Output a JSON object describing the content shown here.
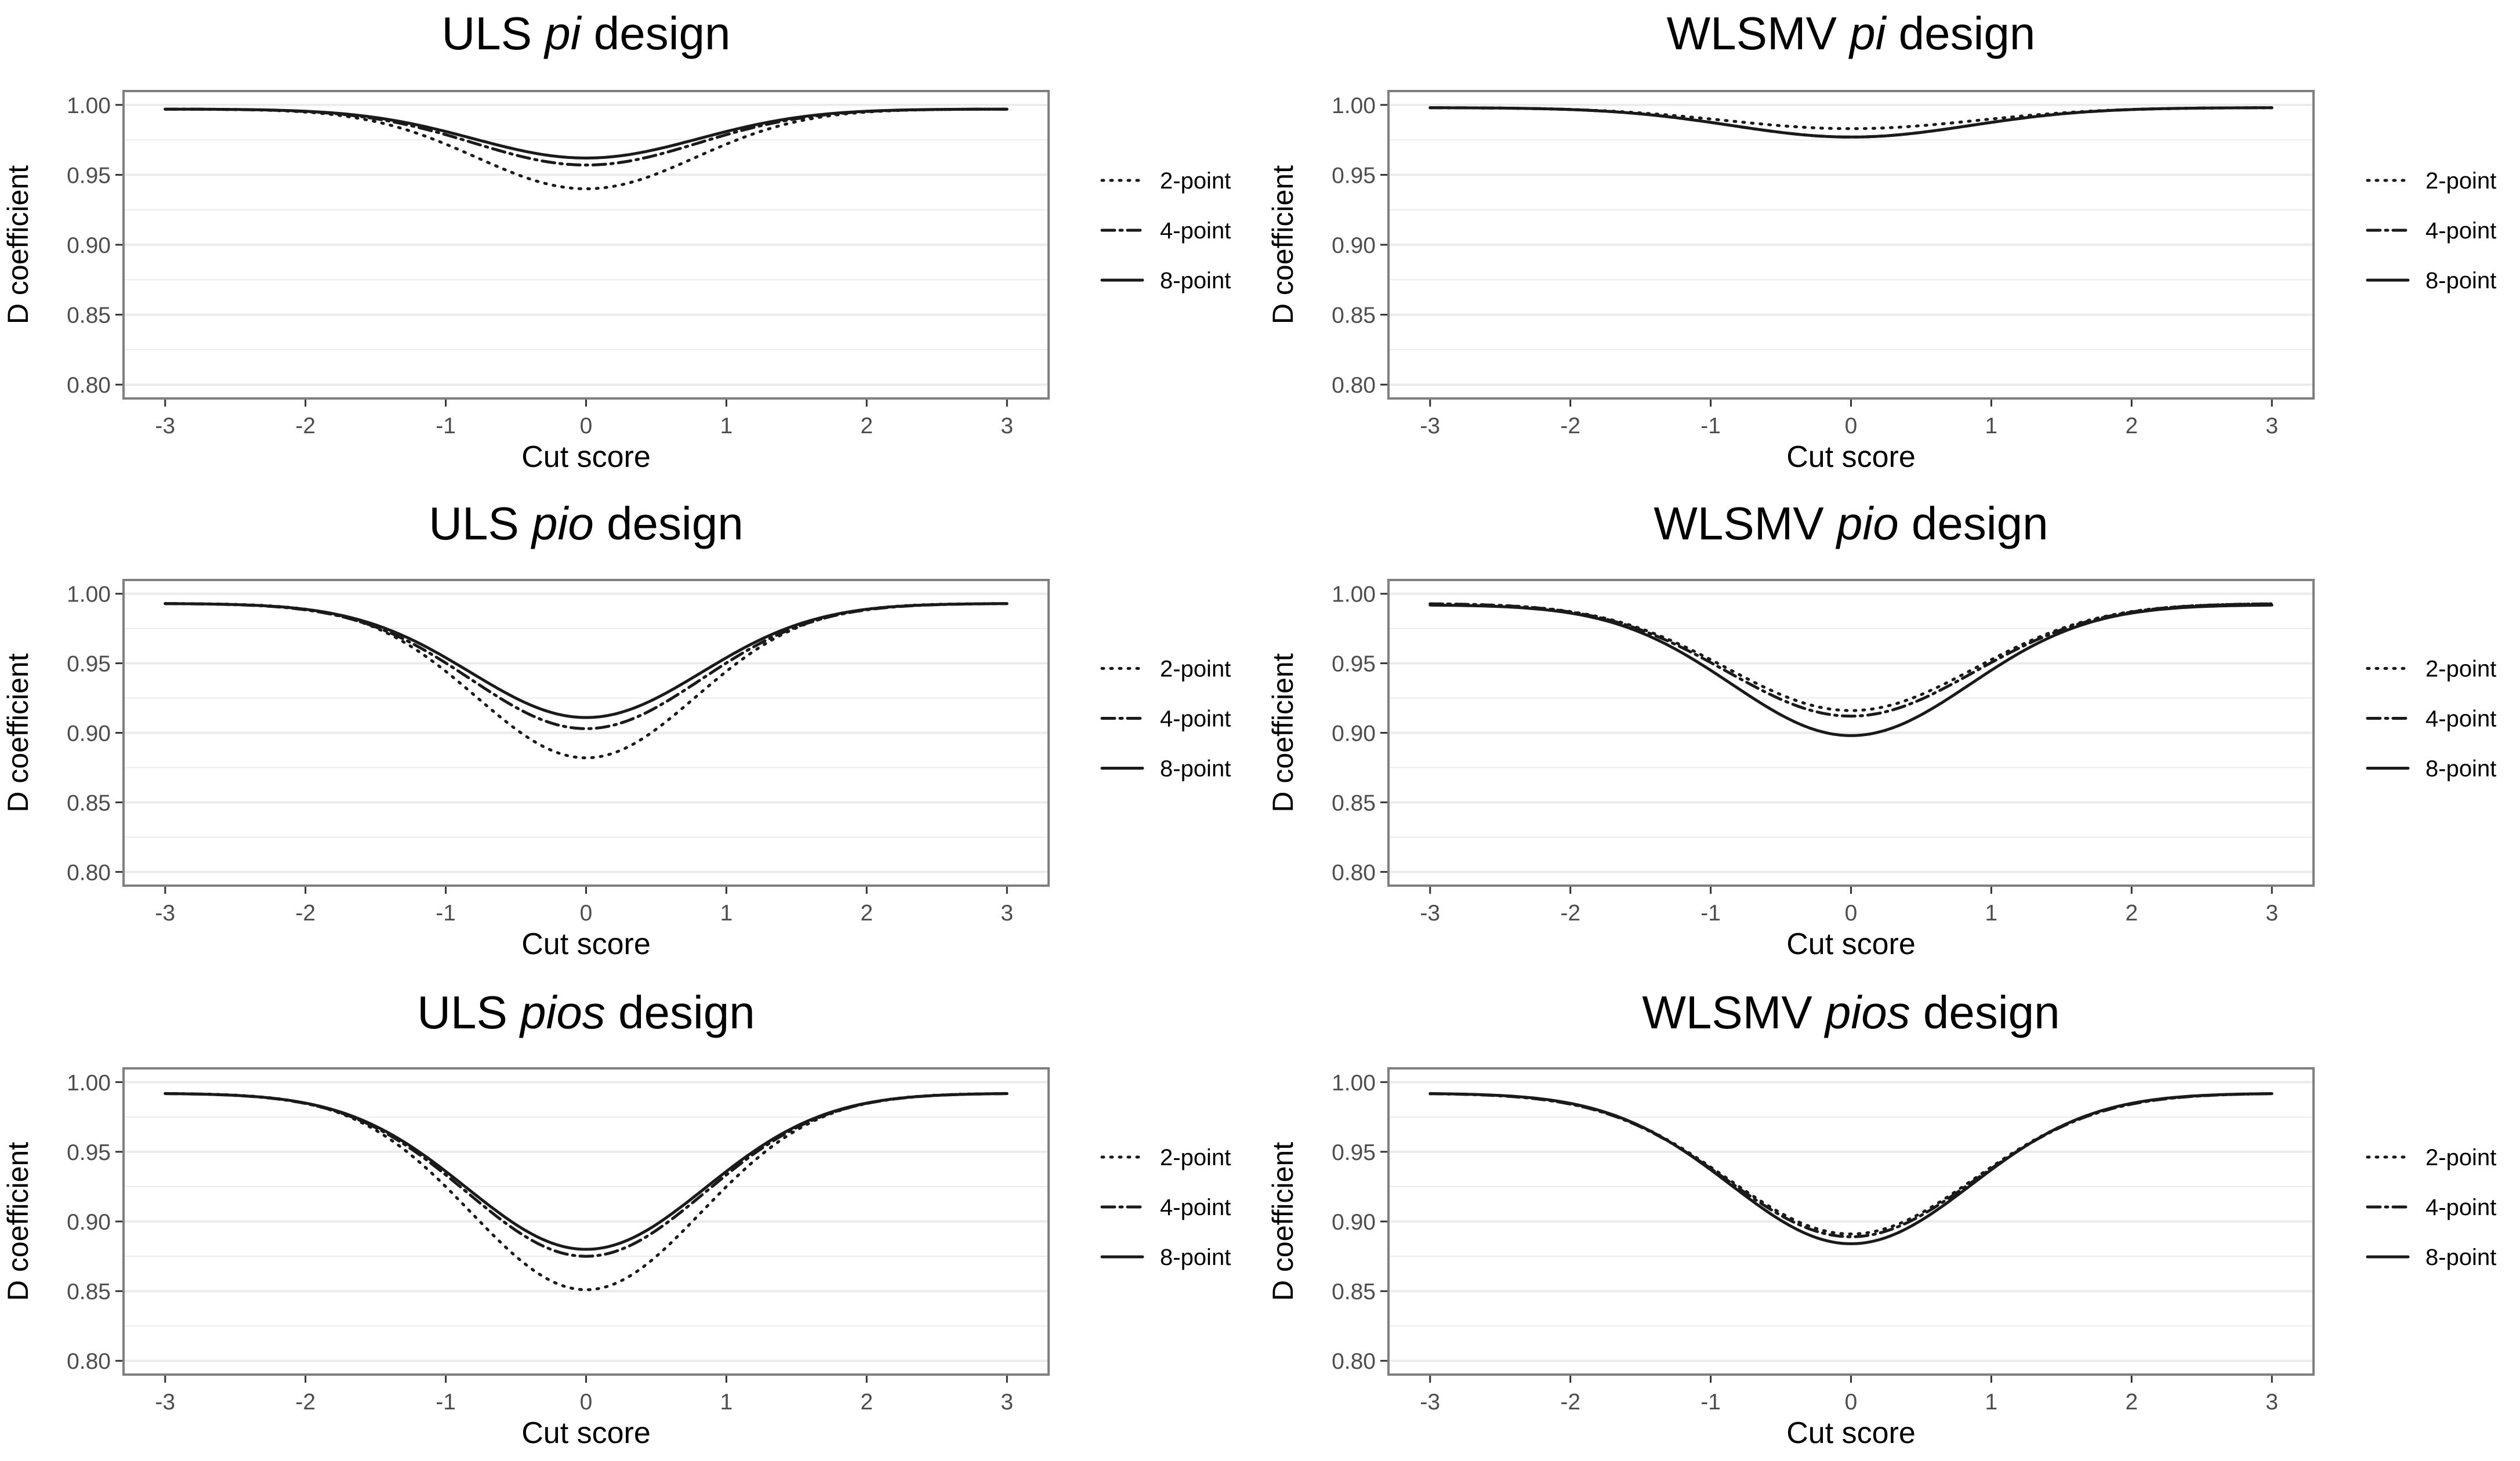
{
  "chart_data": [
    {
      "type": "line",
      "title_prefix": "ULS",
      "title_italic": "pi",
      "title_suffix": "design",
      "xlabel": "Cut score",
      "ylabel": "D coefficient",
      "xlim": [
        -3,
        3
      ],
      "ylim": [
        0.8,
        1.0
      ],
      "xticks": [
        "-3",
        "-2",
        "-1",
        "0",
        "1",
        "2",
        "3"
      ],
      "yticks": [
        "0.80",
        "0.85",
        "0.90",
        "0.95",
        "1.00"
      ],
      "legend_position": "right",
      "series": [
        {
          "name": "2-point",
          "linetype": "dotted",
          "min": 0.94,
          "end": 0.997,
          "width": 0.78
        },
        {
          "name": "4-point",
          "linetype": "dashdot",
          "min": 0.957,
          "end": 0.997,
          "width": 0.8
        },
        {
          "name": "8-point",
          "linetype": "solid",
          "min": 0.962,
          "end": 0.997,
          "width": 0.8
        }
      ]
    },
    {
      "type": "line",
      "title_prefix": "WLSMV",
      "title_italic": "pi",
      "title_suffix": "design",
      "xlabel": "Cut score",
      "ylabel": "D coefficient",
      "xlim": [
        -3,
        3
      ],
      "ylim": [
        0.8,
        1.0
      ],
      "xticks": [
        "-3",
        "-2",
        "-1",
        "0",
        "1",
        "2",
        "3"
      ],
      "yticks": [
        "0.80",
        "0.85",
        "0.90",
        "0.95",
        "1.00"
      ],
      "legend_position": "right",
      "series": [
        {
          "name": "2-point",
          "linetype": "dotted",
          "min": 0.983,
          "end": 0.998,
          "width": 0.9
        },
        {
          "name": "4-point",
          "linetype": "dashdot",
          "min": 0.977,
          "end": 0.998,
          "width": 0.85
        },
        {
          "name": "8-point",
          "linetype": "solid",
          "min": 0.977,
          "end": 0.998,
          "width": 0.85
        }
      ]
    },
    {
      "type": "line",
      "title_prefix": "ULS",
      "title_italic": "pio",
      "title_suffix": "design",
      "xlabel": "Cut score",
      "ylabel": "D coefficient",
      "xlim": [
        -3,
        3
      ],
      "ylim": [
        0.8,
        1.0
      ],
      "xticks": [
        "-3",
        "-2",
        "-1",
        "0",
        "1",
        "2",
        "3"
      ],
      "yticks": [
        "0.80",
        "0.85",
        "0.90",
        "0.95",
        "1.00"
      ],
      "legend_position": "right",
      "series": [
        {
          "name": "2-point",
          "linetype": "dotted",
          "min": 0.882,
          "end": 0.993,
          "width": 0.78
        },
        {
          "name": "4-point",
          "linetype": "dashdot",
          "min": 0.903,
          "end": 0.993,
          "width": 0.82
        },
        {
          "name": "8-point",
          "linetype": "solid",
          "min": 0.911,
          "end": 0.993,
          "width": 0.82
        }
      ]
    },
    {
      "type": "line",
      "title_prefix": "WLSMV",
      "title_italic": "pio",
      "title_suffix": "design",
      "xlabel": "Cut score",
      "ylabel": "D coefficient",
      "xlim": [
        -3,
        3
      ],
      "ylim": [
        0.8,
        1.0
      ],
      "xticks": [
        "-3",
        "-2",
        "-1",
        "0",
        "1",
        "2",
        "3"
      ],
      "yticks": [
        "0.80",
        "0.85",
        "0.90",
        "0.95",
        "1.00"
      ],
      "legend_position": "right",
      "series": [
        {
          "name": "2-point",
          "linetype": "dotted",
          "min": 0.916,
          "end": 0.993,
          "width": 0.88
        },
        {
          "name": "4-point",
          "linetype": "dashdot",
          "min": 0.912,
          "end": 0.993,
          "width": 0.88
        },
        {
          "name": "8-point",
          "linetype": "solid",
          "min": 0.898,
          "end": 0.992,
          "width": 0.85
        }
      ]
    },
    {
      "type": "line",
      "title_prefix": "ULS",
      "title_italic": "pios",
      "title_suffix": "design",
      "xlabel": "Cut score",
      "ylabel": "D coefficient",
      "xlim": [
        -3,
        3
      ],
      "ylim": [
        0.8,
        1.0
      ],
      "xticks": [
        "-3",
        "-2",
        "-1",
        "0",
        "1",
        "2",
        "3"
      ],
      "yticks": [
        "0.80",
        "0.85",
        "0.90",
        "0.95",
        "1.00"
      ],
      "legend_position": "right",
      "series": [
        {
          "name": "2-point",
          "linetype": "dotted",
          "min": 0.851,
          "end": 0.992,
          "width": 0.82
        },
        {
          "name": "4-point",
          "linetype": "dashdot",
          "min": 0.875,
          "end": 0.992,
          "width": 0.85
        },
        {
          "name": "8-point",
          "linetype": "solid",
          "min": 0.88,
          "end": 0.992,
          "width": 0.85
        }
      ]
    },
    {
      "type": "line",
      "title_prefix": "WLSMV",
      "title_italic": "pios",
      "title_suffix": "design",
      "xlabel": "Cut score",
      "ylabel": "D coefficient",
      "xlim": [
        -3,
        3
      ],
      "ylim": [
        0.8,
        1.0
      ],
      "xticks": [
        "-3",
        "-2",
        "-1",
        "0",
        "1",
        "2",
        "3"
      ],
      "yticks": [
        "0.80",
        "0.85",
        "0.90",
        "0.95",
        "1.00"
      ],
      "legend_position": "right",
      "series": [
        {
          "name": "2-point",
          "linetype": "dotted",
          "min": 0.891,
          "end": 0.992,
          "width": 0.88
        },
        {
          "name": "4-point",
          "linetype": "dashdot",
          "min": 0.889,
          "end": 0.992,
          "width": 0.88
        },
        {
          "name": "8-point",
          "linetype": "solid",
          "min": 0.884,
          "end": 0.992,
          "width": 0.86
        }
      ]
    }
  ],
  "colors": {
    "line": "#1a1a1a",
    "grid": "#ebebeb",
    "border": "#7f7f7f",
    "text": "#000000",
    "tick_text": "#4d4d4d"
  }
}
